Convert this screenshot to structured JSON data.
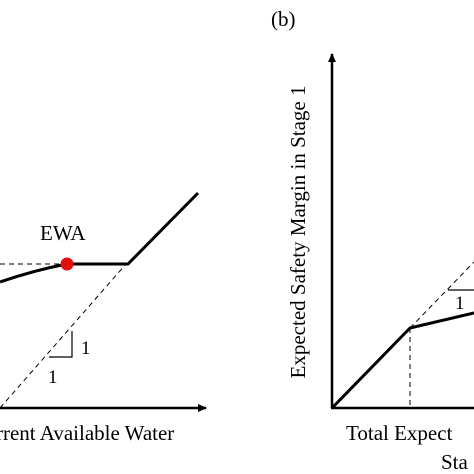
{
  "figure": {
    "panel_b_label": "(b)"
  },
  "panel_a": {
    "point_label": "EWA",
    "x_axis_label": "rrent Available Water",
    "slope_run": "1",
    "slope_rise": "1"
  },
  "panel_b": {
    "y_axis_label": "Expected Safety Margin in Stage 1",
    "x_axis_label": "Total Expect",
    "x_axis_label_line2": "Sta",
    "slope_label": "1"
  },
  "colors": {
    "ink": "#000000",
    "marker": "#e01010"
  }
}
